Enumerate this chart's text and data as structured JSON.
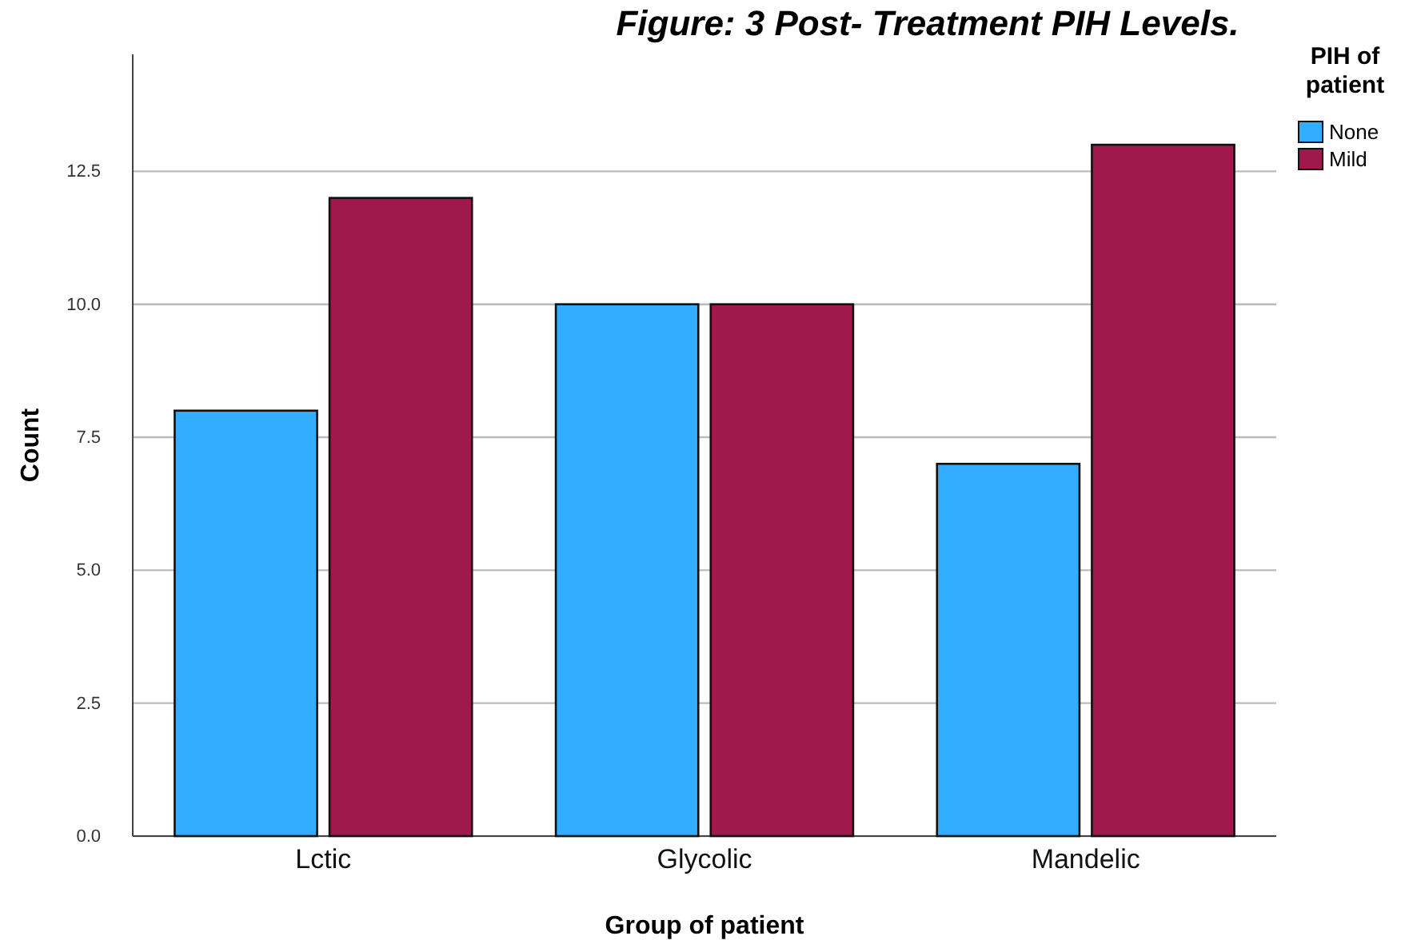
{
  "chart_data": {
    "type": "bar",
    "title": "Figure: 3 Post- Treatment PIH Levels.",
    "xlabel": "Group of patient",
    "ylabel": "Count",
    "legend_title": "PIH of patient",
    "categories": [
      "Lctic",
      "Glycolic",
      "Mandelic"
    ],
    "series": [
      {
        "name": "None",
        "color": "#33adff",
        "values": [
          8,
          10,
          7
        ]
      },
      {
        "name": "Mild",
        "color": "#a0194c",
        "values": [
          12,
          10,
          13
        ]
      }
    ],
    "ylim": [
      0,
      14.7
    ],
    "yticks": [
      {
        "value": 0,
        "label": "0.0"
      },
      {
        "value": 2.5,
        "label": "2.5"
      },
      {
        "value": 5,
        "label": "5.0"
      },
      {
        "value": 7.5,
        "label": "7.5"
      },
      {
        "value": 10,
        "label": "10.0"
      },
      {
        "value": 12.5,
        "label": "12.5"
      }
    ],
    "grid": "y",
    "legend": "top right"
  }
}
